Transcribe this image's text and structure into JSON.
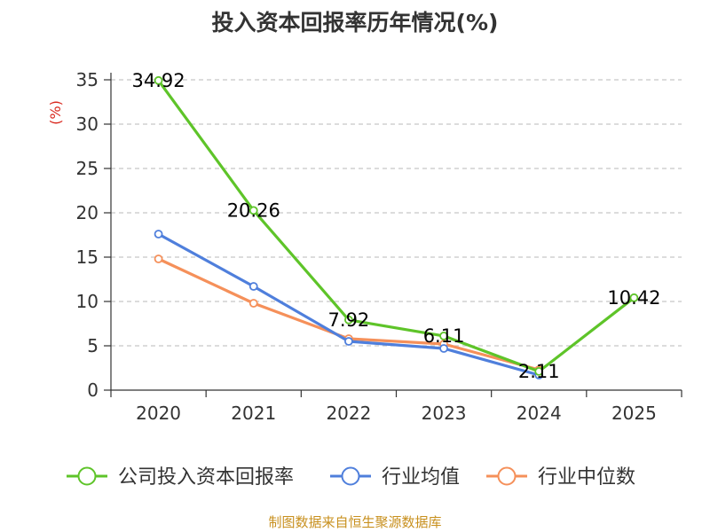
{
  "chart_data": {
    "type": "line",
    "title": "投入资本回报率历年情况(%)",
    "ylabel": "(%)",
    "xlabel": "",
    "ylim": [
      0,
      35
    ],
    "yticks": [
      0,
      5,
      10,
      15,
      20,
      25,
      30,
      35
    ],
    "categories": [
      "2020",
      "2021",
      "2022",
      "2023",
      "2024",
      "2025"
    ],
    "series": [
      {
        "name": "公司投入资本回报率",
        "color": "#5ec429",
        "values": [
          34.92,
          20.26,
          7.92,
          6.11,
          2.11,
          10.42
        ],
        "labels": [
          "34.92",
          "20.26",
          "7.92",
          "6.11",
          "2.11",
          "10.42"
        ]
      },
      {
        "name": "行业均值",
        "color": "#4f7fdc",
        "values": [
          17.6,
          11.7,
          5.5,
          4.7,
          1.7,
          null
        ]
      },
      {
        "name": "行业中位数",
        "color": "#f5905a",
        "values": [
          14.8,
          9.8,
          5.8,
          5.2,
          2.3,
          null
        ]
      }
    ],
    "grid": true,
    "legend_position": "bottom"
  },
  "source_note": "制图数据来自恒生聚源数据库"
}
